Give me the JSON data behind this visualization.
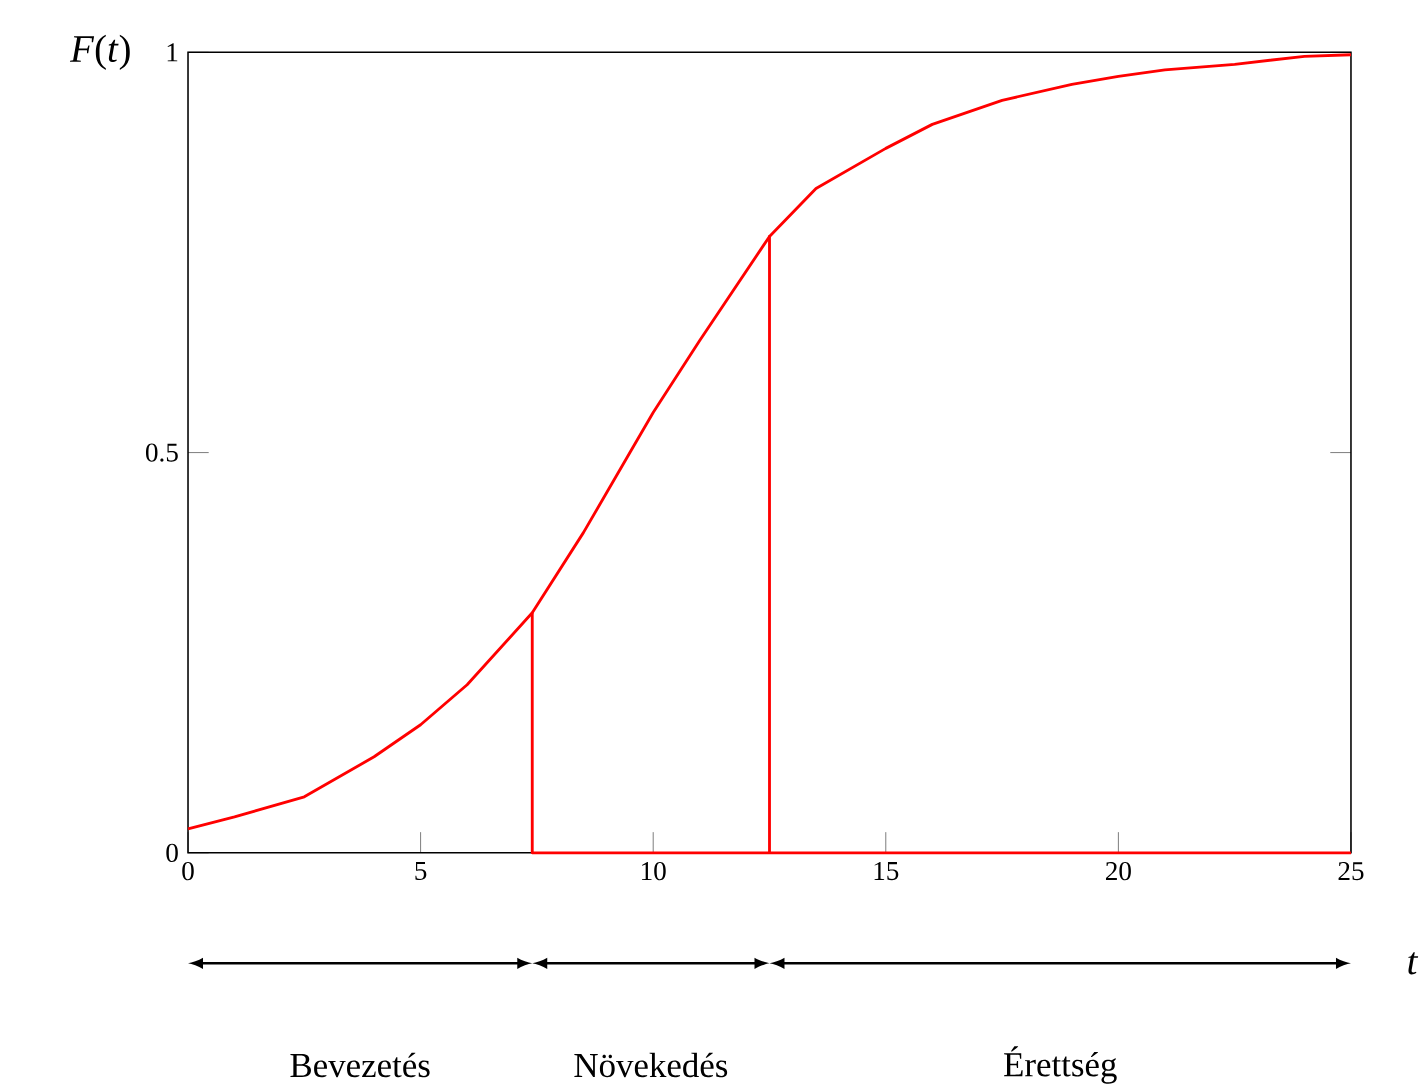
{
  "chart_data": {
    "type": "line",
    "xlabel": "t",
    "ylabel": "*F*(*t*)",
    "xlim": [
      0,
      25
    ],
    "ylim": [
      0,
      1
    ],
    "xticks": [
      0,
      5,
      10,
      15,
      20,
      25
    ],
    "yticks": [
      0,
      0.5,
      1
    ],
    "series": [
      {
        "color": "#ff0000",
        "x": [
          0,
          1,
          2.5,
          4,
          5,
          6,
          7.4,
          8.5,
          9.5,
          10,
          11,
          12.5,
          13.5,
          15,
          16,
          17.5,
          19,
          20,
          21,
          22.5,
          24,
          25
        ],
        "values": [
          0.03,
          0.045,
          0.07,
          0.12,
          0.16,
          0.21,
          0.3,
          0.4,
          0.5,
          0.55,
          0.64,
          0.77,
          0.83,
          0.88,
          0.91,
          0.94,
          0.96,
          0.97,
          0.978,
          0.985,
          0.995,
          0.997
        ]
      },
      {
        "color": "#ff0000",
        "x": [
          7.4,
          7.4,
          12.5,
          12.5,
          12.5,
          25
        ],
        "values": [
          0.3,
          0,
          0,
          0.77,
          0,
          0
        ]
      }
    ],
    "annotations": [
      "Bevezetés",
      "Növekedés",
      "Érettség"
    ],
    "grid": false,
    "marker": "none",
    "line_style": "solid"
  }
}
